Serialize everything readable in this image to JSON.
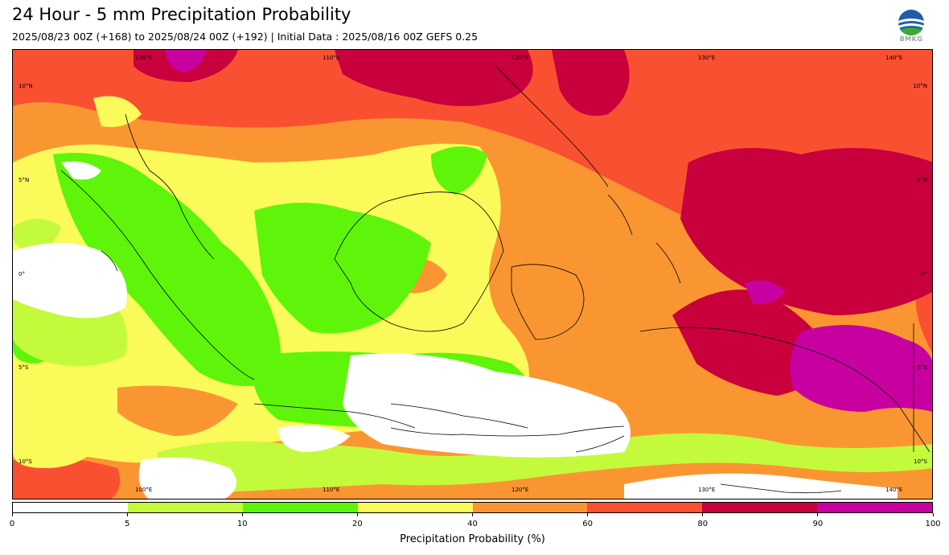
{
  "header": {
    "title": "24 Hour - 5 mm Precipitation Probability",
    "subtitle": "2025/08/23 00Z (+168) to 2025/08/24 00Z (+192) | Initial Data : 2025/08/16 00Z GEFS 0.25",
    "logo_text": "BMKG"
  },
  "map": {
    "lon_labels": [
      "100°E",
      "110°E",
      "120°E",
      "130°E",
      "140°E"
    ],
    "lat_labels": [
      "10°N",
      "5°N",
      "0°",
      "5°S",
      "10°S"
    ]
  },
  "colorbar": {
    "ticks": [
      "0",
      "5",
      "10",
      "20",
      "40",
      "60",
      "80",
      "90",
      "100"
    ],
    "colors": [
      "#ffffff",
      "#c4fa3c",
      "#5ef50a",
      "#fafa5a",
      "#fa9632",
      "#fa5032",
      "#c8003c",
      "#c800a0"
    ],
    "label": "Precipitation Probability (%)"
  }
}
